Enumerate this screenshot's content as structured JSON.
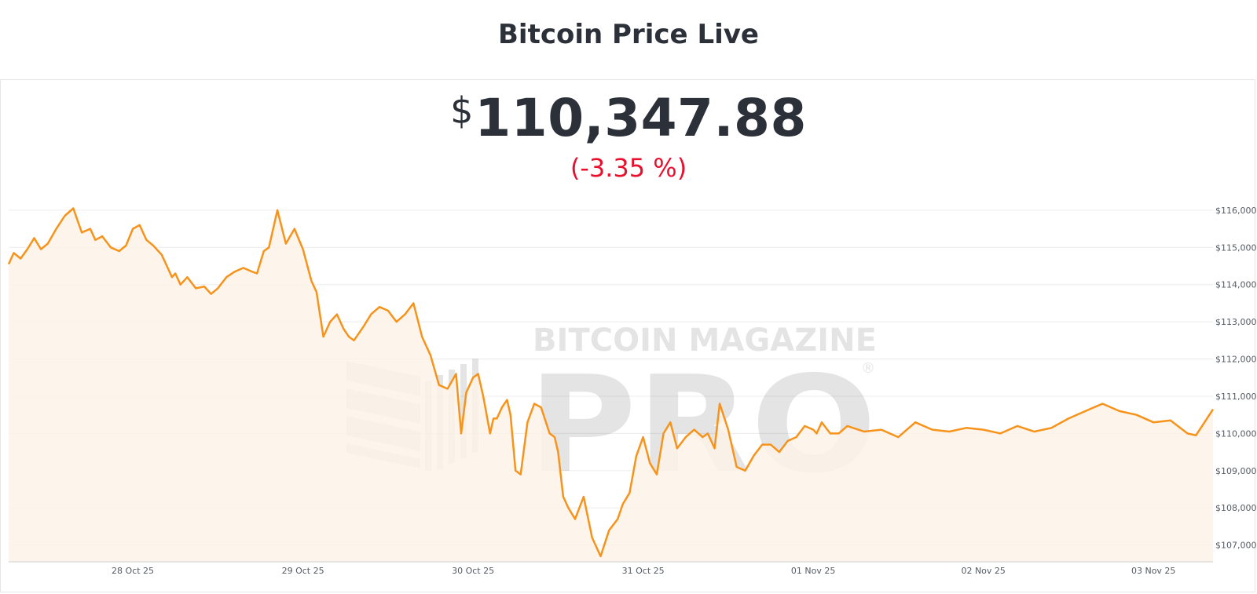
{
  "header": {
    "title": "Bitcoin Price Live"
  },
  "price": {
    "currency": "$",
    "value": "110,347.88",
    "change": "(-3.35 %)"
  },
  "watermark": {
    "line1": "BITCOIN MAGAZINE",
    "line2": "PRO",
    "mark": "®"
  },
  "colors": {
    "line": "#f7931a",
    "area": "#fdf3e7",
    "change_negative": "#e8102e",
    "text": "#2c3038"
  },
  "chart_data": {
    "type": "area",
    "title": "",
    "xlabel": "",
    "ylabel": "",
    "y_tick_labels": [
      "$116,000",
      "$115,000",
      "$114,000",
      "$113,000",
      "$112,000",
      "$111,000",
      "$110,000",
      "$109,000",
      "$108,000",
      "$107,000"
    ],
    "y_ticks": [
      116000,
      115000,
      114000,
      113000,
      112000,
      111000,
      110000,
      109000,
      108000,
      107000
    ],
    "x_tick_labels": [
      "28 Oct 25",
      "29 Oct 25",
      "30 Oct 25",
      "31 Oct 25",
      "01 Nov 25",
      "02 Nov 25",
      "03 Nov 25"
    ],
    "x_ticks": [
      1,
      2,
      3,
      4,
      5,
      6,
      7
    ],
    "xlim": [
      0.27,
      7.35
    ],
    "ylim": [
      106550,
      116250
    ],
    "grid": "horizontal",
    "legend": "none",
    "series": [
      {
        "x": [
          0.27,
          0.3,
          0.34,
          0.38,
          0.42,
          0.46,
          0.5,
          0.55,
          0.6,
          0.65,
          0.7,
          0.75,
          0.78,
          0.82,
          0.87,
          0.92,
          0.96,
          1.0,
          1.04,
          1.08,
          1.12,
          1.17,
          1.2,
          1.23,
          1.25,
          1.28,
          1.32,
          1.37,
          1.42,
          1.46,
          1.5,
          1.55,
          1.6,
          1.65,
          1.7,
          1.73,
          1.77,
          1.8,
          1.85,
          1.9,
          1.95,
          2.0,
          2.05,
          2.08,
          2.12,
          2.16,
          2.2,
          2.24,
          2.27,
          2.3,
          2.33,
          2.36,
          2.4,
          2.45,
          2.5,
          2.55,
          2.6,
          2.65,
          2.7,
          2.75,
          2.8,
          2.85,
          2.9,
          2.93,
          2.96,
          3.0,
          3.03,
          3.06,
          3.1,
          3.12,
          3.14,
          3.17,
          3.2,
          3.22,
          3.25,
          3.28,
          3.32,
          3.36,
          3.4,
          3.45,
          3.48,
          3.5,
          3.53,
          3.56,
          3.6,
          3.65,
          3.7,
          3.75,
          3.8,
          3.85,
          3.88,
          3.92,
          3.96,
          4.0,
          4.04,
          4.08,
          4.12,
          4.16,
          4.2,
          4.25,
          4.3,
          4.35,
          4.38,
          4.42,
          4.45,
          4.5,
          4.55,
          4.6,
          4.65,
          4.7,
          4.75,
          4.8,
          4.85,
          4.9,
          4.95,
          5.0,
          5.02,
          5.05,
          5.1,
          5.15,
          5.2,
          5.3,
          5.4,
          5.5,
          5.6,
          5.7,
          5.8,
          5.9,
          6.0,
          6.1,
          6.2,
          6.3,
          6.4,
          6.5,
          6.6,
          6.7,
          6.8,
          6.9,
          7.0,
          7.1,
          7.2,
          7.25,
          7.3,
          7.35
        ],
        "y": [
          114550,
          114850,
          114700,
          114950,
          115250,
          114950,
          115100,
          115500,
          115850,
          116050,
          115400,
          115500,
          115200,
          115300,
          115000,
          114900,
          115050,
          115500,
          115600,
          115200,
          115050,
          114800,
          114500,
          114200,
          114300,
          114000,
          114200,
          113900,
          113950,
          113750,
          113900,
          114200,
          114350,
          114450,
          114350,
          114300,
          114900,
          115000,
          116000,
          115100,
          115500,
          114950,
          114100,
          113800,
          112600,
          113000,
          113200,
          112800,
          112600,
          112500,
          112700,
          112900,
          113200,
          113400,
          113300,
          113000,
          113200,
          113500,
          112600,
          112100,
          111300,
          111200,
          111600,
          110000,
          111100,
          111500,
          111600,
          111000,
          110000,
          110400,
          110400,
          110700,
          110900,
          110500,
          109000,
          108900,
          110300,
          110800,
          110700,
          110000,
          109900,
          109500,
          108300,
          108000,
          107700,
          108300,
          107200,
          106700,
          107400,
          107700,
          108100,
          108400,
          109400,
          109900,
          109200,
          108900,
          110000,
          110300,
          109600,
          109900,
          110100,
          109900,
          110000,
          109600,
          110800,
          110100,
          109100,
          109000,
          109400,
          109700,
          109700,
          109500,
          109800,
          109900,
          110200,
          110100,
          110000,
          110300,
          110000,
          110000,
          110200,
          110050,
          110100,
          109900,
          110300,
          110100,
          110050,
          110150,
          110100,
          110000,
          110200,
          110050,
          110150,
          110400,
          110600,
          110800,
          110600,
          110500,
          110300,
          110350,
          110000,
          109950,
          110300,
          110650
        ]
      }
    ]
  }
}
